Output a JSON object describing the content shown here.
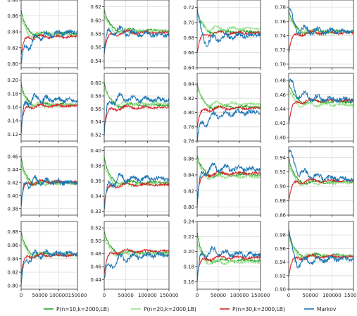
{
  "chart_data": {
    "type": "line",
    "layout": {
      "rows": 4,
      "cols": 4
    },
    "x_range": [
      0,
      150000
    ],
    "x_ticks": [
      0,
      50000,
      100000,
      150000
    ],
    "x_tick_labels": [
      "0",
      "50000",
      "100000",
      "150000"
    ],
    "grid": true,
    "legend_position": "bottom-center",
    "series_styles": [
      {
        "name": "P(n=10,k=2000,LB)",
        "color": "#2ca02c"
      },
      {
        "name": "P(n=20,k=2000,LB)",
        "color": "#98df8a"
      },
      {
        "name": "P(n=30,k=2000,LB)",
        "color": "#d62728"
      },
      {
        "name": "Markov",
        "color": "#1f77b4"
      }
    ],
    "panels": [
      {
        "ylim": [
          0.795,
          0.88
        ],
        "yticks": [
          "0.80",
          "0.82",
          "0.84",
          "0.86",
          "0.88"
        ],
        "yvals": [
          0.8,
          0.82,
          0.84,
          0.86,
          0.88
        ],
        "final": [
          0.838,
          0.836,
          0.834,
          0.84
        ],
        "markov_start": 0.8,
        "markov_dip": 0.81
      },
      {
        "ylim": [
          0.53,
          0.63
        ],
        "yticks": [
          "0.54",
          "0.56",
          "0.58",
          "0.60",
          "0.62"
        ],
        "yvals": [
          0.54,
          0.56,
          0.58,
          0.6,
          0.62
        ],
        "final": [
          0.585,
          0.584,
          0.582,
          0.578
        ],
        "markov_start": 0.55,
        "markov_dip": 0.6
      },
      {
        "ylim": [
          0.64,
          0.73
        ],
        "yticks": [
          "0.64",
          "0.66",
          "0.68",
          "0.70",
          "0.72"
        ],
        "yvals": [
          0.64,
          0.66,
          0.68,
          0.7,
          0.72
        ],
        "final": [
          0.688,
          0.692,
          0.686,
          0.684
        ],
        "markov_start": 0.72,
        "markov_dip": 0.66
      },
      {
        "ylim": [
          0.695,
          0.79
        ],
        "yticks": [
          "0.70",
          "0.72",
          "0.74",
          "0.76",
          "0.78"
        ],
        "yvals": [
          0.7,
          0.72,
          0.74,
          0.76,
          0.78
        ],
        "final": [
          0.746,
          0.745,
          0.744,
          0.746
        ],
        "markov_start": 0.78,
        "markov_dip": 0.75
      },
      {
        "ylim": [
          0.11,
          0.21
        ],
        "yticks": [
          "0.12",
          "0.14",
          "0.16",
          "0.18",
          "0.20"
        ],
        "yvals": [
          0.12,
          0.14,
          0.16,
          0.18,
          0.2
        ],
        "final": [
          0.164,
          0.163,
          0.162,
          0.17
        ],
        "markov_start": 0.12,
        "markov_dip": 0.18
      },
      {
        "ylim": [
          0.51,
          0.615
        ],
        "yticks": [
          "0.52",
          "0.54",
          "0.56",
          "0.58",
          "0.60"
        ],
        "yvals": [
          0.52,
          0.54,
          0.56,
          0.58,
          0.6
        ],
        "final": [
          0.566,
          0.568,
          0.562,
          0.574
        ],
        "markov_start": 0.52,
        "markov_dip": 0.585
      },
      {
        "ylim": [
          0.76,
          0.855
        ],
        "yticks": [
          "0.76",
          "0.78",
          "0.80",
          "0.82",
          "0.84"
        ],
        "yvals": [
          0.76,
          0.78,
          0.8,
          0.82,
          0.84
        ],
        "final": [
          0.808,
          0.812,
          0.806,
          0.801
        ],
        "markov_start": 0.76,
        "markov_dip": 0.78
      },
      {
        "ylim": [
          0.395,
          0.49
        ],
        "yticks": [
          "0.40",
          "0.42",
          "0.44",
          "0.46",
          "0.48"
        ],
        "yvals": [
          0.4,
          0.42,
          0.44,
          0.46,
          0.48
        ],
        "final": [
          0.45,
          0.446,
          0.452,
          0.453
        ],
        "markov_start": 0.48,
        "markov_dip": 0.47
      },
      {
        "ylim": [
          0.37,
          0.475
        ],
        "yticks": [
          "0.38",
          "0.40",
          "0.42",
          "0.44",
          "0.46"
        ],
        "yvals": [
          0.38,
          0.4,
          0.42,
          0.44,
          0.46
        ],
        "final": [
          0.42,
          0.419,
          0.421,
          0.42
        ],
        "markov_start": 0.38,
        "markov_dip": 0.43
      },
      {
        "ylim": [
          0.315,
          0.405
        ],
        "yticks": [
          "0.32",
          "0.34",
          "0.36",
          "0.38",
          "0.40"
        ],
        "yvals": [
          0.32,
          0.34,
          0.36,
          0.38,
          0.4
        ],
        "final": [
          0.358,
          0.356,
          0.355,
          0.363
        ],
        "markov_start": 0.32,
        "markov_dip": 0.365
      },
      {
        "ylim": [
          0.79,
          0.875
        ],
        "yticks": [
          "0.80",
          "0.82",
          "0.84",
          "0.86"
        ],
        "yvals": [
          0.8,
          0.82,
          0.84,
          0.86
        ],
        "final": [
          0.84,
          0.838,
          0.842,
          0.847
        ],
        "markov_start": 0.8,
        "markov_dip": 0.855
      },
      {
        "ylim": [
          0.86,
          0.955
        ],
        "yticks": [
          "0.86",
          "0.88",
          "0.90",
          "0.92",
          "0.94"
        ],
        "yvals": [
          0.86,
          0.88,
          0.9,
          0.92,
          0.94
        ],
        "final": [
          0.906,
          0.905,
          0.908,
          0.91
        ],
        "markov_start": 0.95,
        "markov_dip": 0.935
      },
      {
        "ylim": [
          0.795,
          0.895
        ],
        "yticks": [
          "0.80",
          "0.82",
          "0.84",
          "0.86",
          "0.88"
        ],
        "yvals": [
          0.8,
          0.82,
          0.84,
          0.86,
          0.88
        ],
        "final": [
          0.847,
          0.846,
          0.845,
          0.848
        ],
        "markov_start": 0.8,
        "markov_dip": 0.84
      },
      {
        "ylim": [
          0.425,
          0.53
        ],
        "yticks": [
          "0.44",
          "0.46",
          "0.48",
          "0.50",
          "0.52"
        ],
        "yvals": [
          0.44,
          0.46,
          0.48,
          0.5,
          0.52
        ],
        "final": [
          0.482,
          0.48,
          0.484,
          0.479
        ],
        "markov_start": 0.44,
        "markov_dip": 0.455
      },
      {
        "ylim": [
          0.15,
          0.24
        ],
        "yticks": [
          "0.16",
          "0.18",
          "0.20",
          "0.22",
          "0.24"
        ],
        "yvals": [
          0.16,
          0.18,
          0.2,
          0.22,
          0.24
        ],
        "final": [
          0.188,
          0.186,
          0.192,
          0.196
        ],
        "markov_start": 0.16,
        "markov_dip": 0.21
      },
      {
        "ylim": [
          0.9,
          1.0
        ],
        "yticks": [
          "0.90",
          "0.92",
          "0.94",
          "0.96",
          "0.98"
        ],
        "yvals": [
          0.9,
          0.92,
          0.94,
          0.96,
          0.98
        ],
        "final": [
          0.95,
          0.949,
          0.948,
          0.946
        ],
        "markov_start": 0.99,
        "markov_dip": 0.925
      }
    ]
  }
}
